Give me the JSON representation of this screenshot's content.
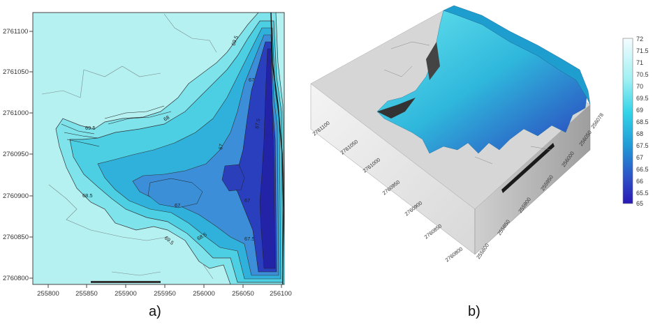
{
  "panel_a": {
    "caption": "a)",
    "x_ticks": [
      "255800",
      "255850",
      "255900",
      "255950",
      "256000",
      "256050",
      "256100"
    ],
    "y_ticks": [
      "2761100",
      "2761050",
      "2761000",
      "2760950",
      "2760900",
      "2760850",
      "2760800"
    ],
    "contour_labels": [
      "69.5",
      "69.5",
      "68",
      "68.5",
      "67",
      "67",
      "67",
      "67",
      "67.5",
      "67.5",
      "68.5",
      "69.5"
    ],
    "colors": {
      "background": "#b5f1f1",
      "shallow": "#5fdbe6",
      "mid": "#2bbfdc",
      "deep": "#3f7fd6",
      "deepest": "#2a2fb5"
    }
  },
  "panel_b": {
    "caption": "b)",
    "colorbar_ticks": [
      "72",
      "71.5",
      "71",
      "70.5",
      "70",
      "69.5",
      "69",
      "68.5",
      "68",
      "67.5",
      "67",
      "66.5",
      "66",
      "65.5",
      "65"
    ],
    "left_axis_ticks": [
      "2761100",
      "2761050",
      "2761000",
      "2760950",
      "2760900",
      "2760850",
      "2760800"
    ],
    "front_axis_ticks": [
      "255800",
      "255850",
      "255900",
      "255950",
      "256000",
      "256050",
      "256078"
    ],
    "colors": {
      "block_top": "#d9d9d9",
      "block_left": "#ededed",
      "block_front": "#bdbdbd",
      "colorbar_top": "#f2fbff",
      "colorbar_bottom": "#2a1bb8"
    }
  }
}
